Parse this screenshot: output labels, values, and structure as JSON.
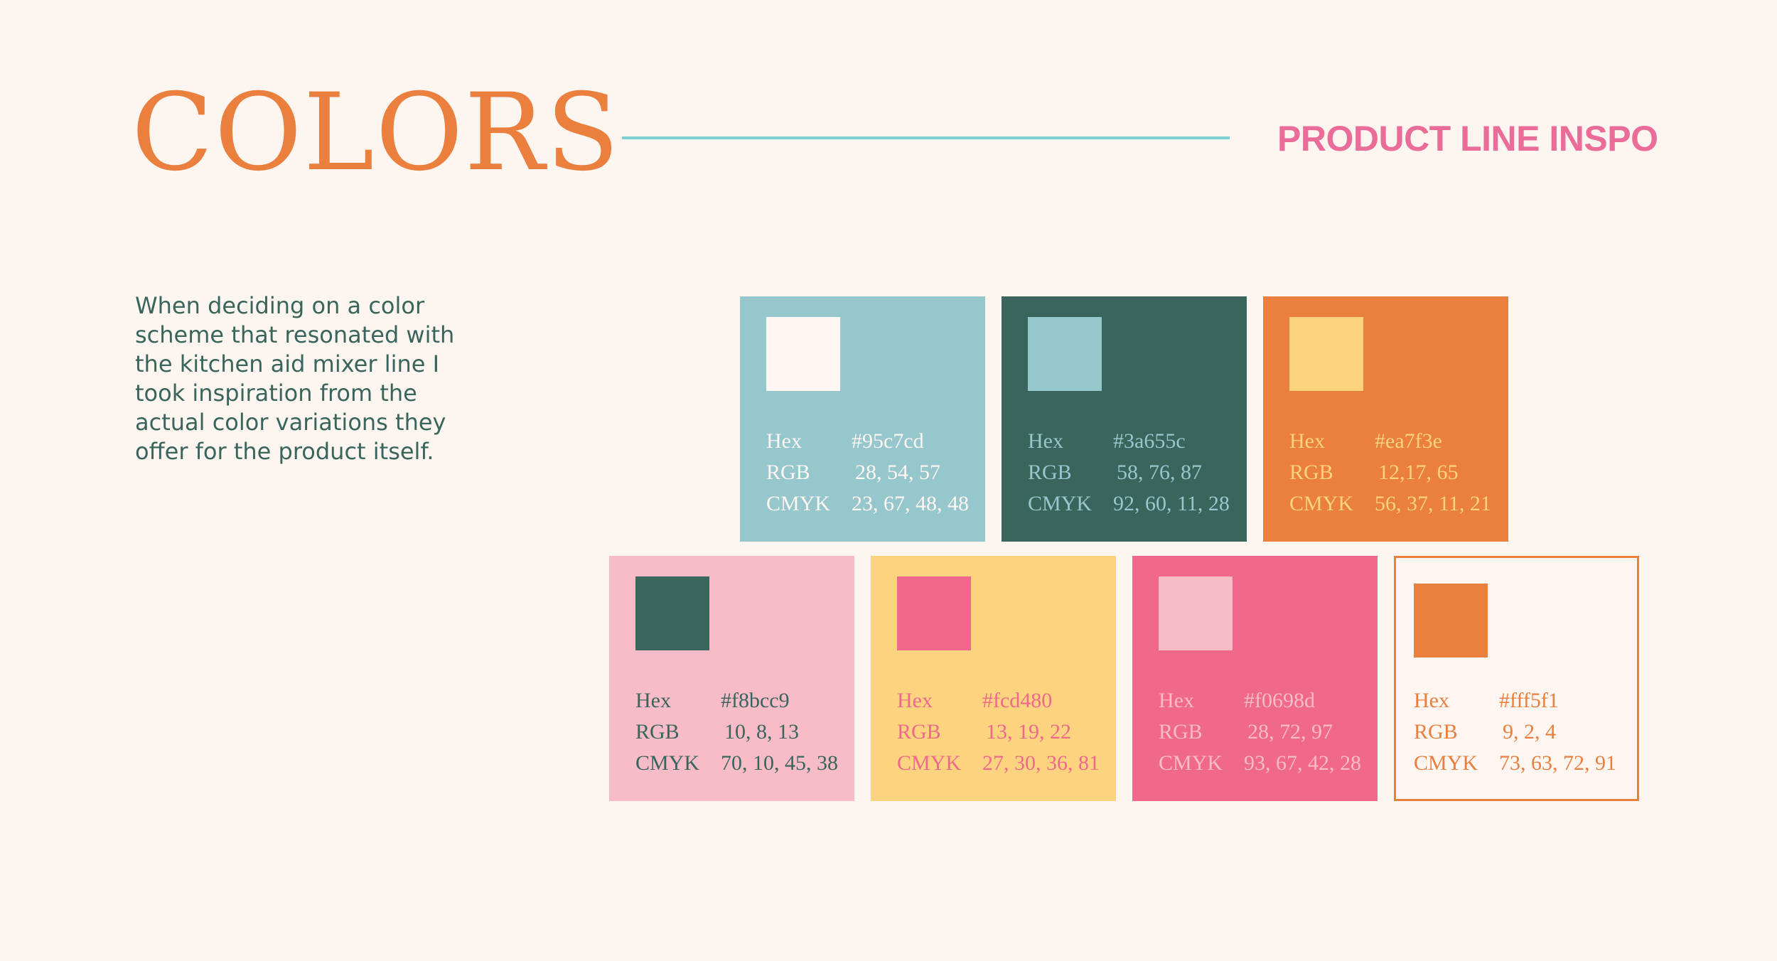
{
  "title": "COLORS",
  "subtitle": "PRODUCT LINE INSPO",
  "description": "When deciding on a color scheme that resonated with the kitchen aid mixer line I took inspiration from the actual color variations they offer for the product itself.",
  "labels": {
    "hex": "Hex",
    "rgb": "RGB",
    "cmyk": "CMYK"
  },
  "colors": {
    "teal": "#95c7cd",
    "green": "#3a655c",
    "orange": "#ea7f3e",
    "pink": "#f8bcc9",
    "yellow": "#fcd480",
    "hotpink": "#f0698d",
    "cream": "#fff5f1",
    "rule": "#7ecfd0",
    "background": "#fdf5f0"
  },
  "cards": [
    {
      "hex": "#95c7cd",
      "rgb": "28, 54, 57",
      "cmyk": "23, 67, 48, 48"
    },
    {
      "hex": "#3a655c",
      "rgb": "58, 76, 87",
      "cmyk": "92, 60, 11, 28"
    },
    {
      "hex": "#ea7f3e",
      "rgb": "12,17, 65",
      "cmyk": "56, 37, 11, 21"
    },
    {
      "hex": "#f8bcc9",
      "rgb": "10, 8, 13",
      "cmyk": "70, 10, 45, 38"
    },
    {
      "hex": "#fcd480",
      "rgb": "13, 19, 22",
      "cmyk": "27, 30, 36, 81"
    },
    {
      "hex": "#f0698d",
      "rgb": "28, 72, 97",
      "cmyk": "93, 67, 42, 28"
    },
    {
      "hex": "#fff5f1",
      "rgb": "9, 2, 4",
      "cmyk": "73, 63, 72, 91"
    }
  ]
}
